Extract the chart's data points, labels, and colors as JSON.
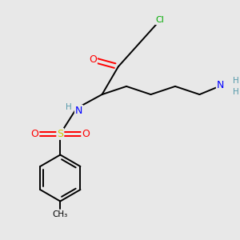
{
  "bg_color": "#e8e8e8",
  "atom_colors": {
    "Cl": "#00aa00",
    "O": "#ff0000",
    "N": "#0000ff",
    "S": "#cccc00",
    "C": "#000000",
    "H": "#5599aa"
  },
  "bond_color": "#000000",
  "lw": 1.4,
  "fontsize": 8.5
}
